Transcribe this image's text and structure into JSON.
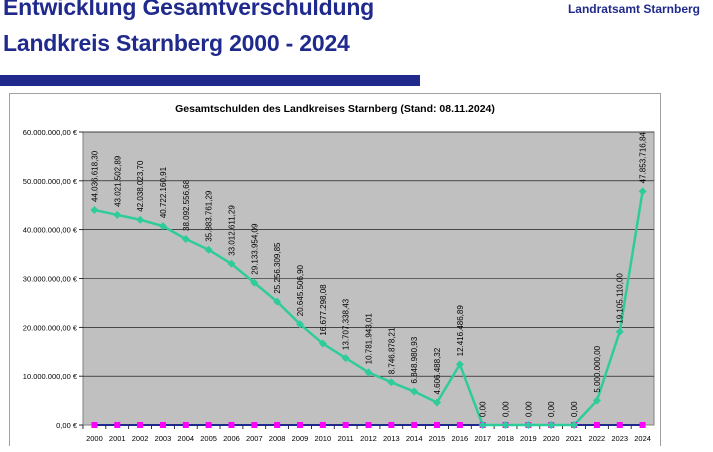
{
  "header": {
    "title_line1": "Entwicklung Gesamtverschuldung",
    "title_line2": "Landkreis Starnberg 2000 - 2024",
    "organization": "Landratsamt Starnberg"
  },
  "colors": {
    "brand": "#1f2a8c",
    "plot_background": "#c0c0c0",
    "debt_line": "#2ecc9a",
    "secondary_line": "#ff00ff",
    "zero_line": "#1f2a8c"
  },
  "chart_data": {
    "type": "line",
    "title": "Gesamtschulden des Landkreises Starnberg (Stand: 08.11.2024)",
    "xlabel": "",
    "ylabel": "",
    "ylim": [
      0,
      60000000
    ],
    "y_ticks": [
      0,
      10000000,
      20000000,
      30000000,
      40000000,
      50000000,
      60000000
    ],
    "y_tick_labels": [
      "0,00 €",
      "10.000.000,00 €",
      "20.000.000,00 €",
      "30.000.000,00 €",
      "40.000.000,00 €",
      "50.000.000,00 €",
      "60.000.000,00 €"
    ],
    "grid": true,
    "legend": "none",
    "categories": [
      "2000",
      "2001",
      "2002",
      "2003",
      "2004",
      "2005",
      "2006",
      "2007",
      "2008",
      "2009",
      "2010",
      "2011",
      "2012",
      "2013",
      "2014",
      "2015",
      "2016",
      "2017",
      "2018",
      "2019",
      "2020",
      "2021",
      "2022",
      "2023",
      "2024"
    ],
    "series": [
      {
        "values": [
          44036618.3,
          43021502.89,
          42038023.7,
          40722160.91,
          38092556.68,
          35883761.29,
          33012611.29,
          29133954.09,
          25256309.85,
          20645506.9,
          16677298.08,
          13707338.43,
          10781943.01,
          8746878.21,
          6848980.93,
          4606488.32,
          12416486.89,
          0,
          0,
          0,
          0,
          0,
          5000000,
          19105110,
          47853716.84
        ],
        "labels": [
          "44.036.618,30",
          "43.021.502,89",
          "42.038.023,70",
          "40.722.160,91",
          "38.092.556,68",
          "35.883.761,29",
          "33.012.611,29",
          "29.133.954,09",
          "25.256.309,85",
          "20.645.506,90",
          "16.677.298,08",
          "13.707.338,43",
          "10.781.943,01",
          "8.746.878,21",
          "6.848.980,93",
          "4.606.488,32",
          "12.416.486,89",
          "0,00",
          "0,00",
          "0,00",
          "0,00",
          "0,00",
          "5.000.000,00",
          "19.105.110,00",
          "47.853.716,84"
        ]
      },
      {
        "values": [
          0,
          0,
          0,
          0,
          0,
          0,
          0,
          0,
          0,
          0,
          0,
          0,
          0,
          0,
          0,
          0,
          0,
          0,
          0,
          0,
          0,
          0,
          0,
          0,
          0
        ]
      }
    ]
  }
}
